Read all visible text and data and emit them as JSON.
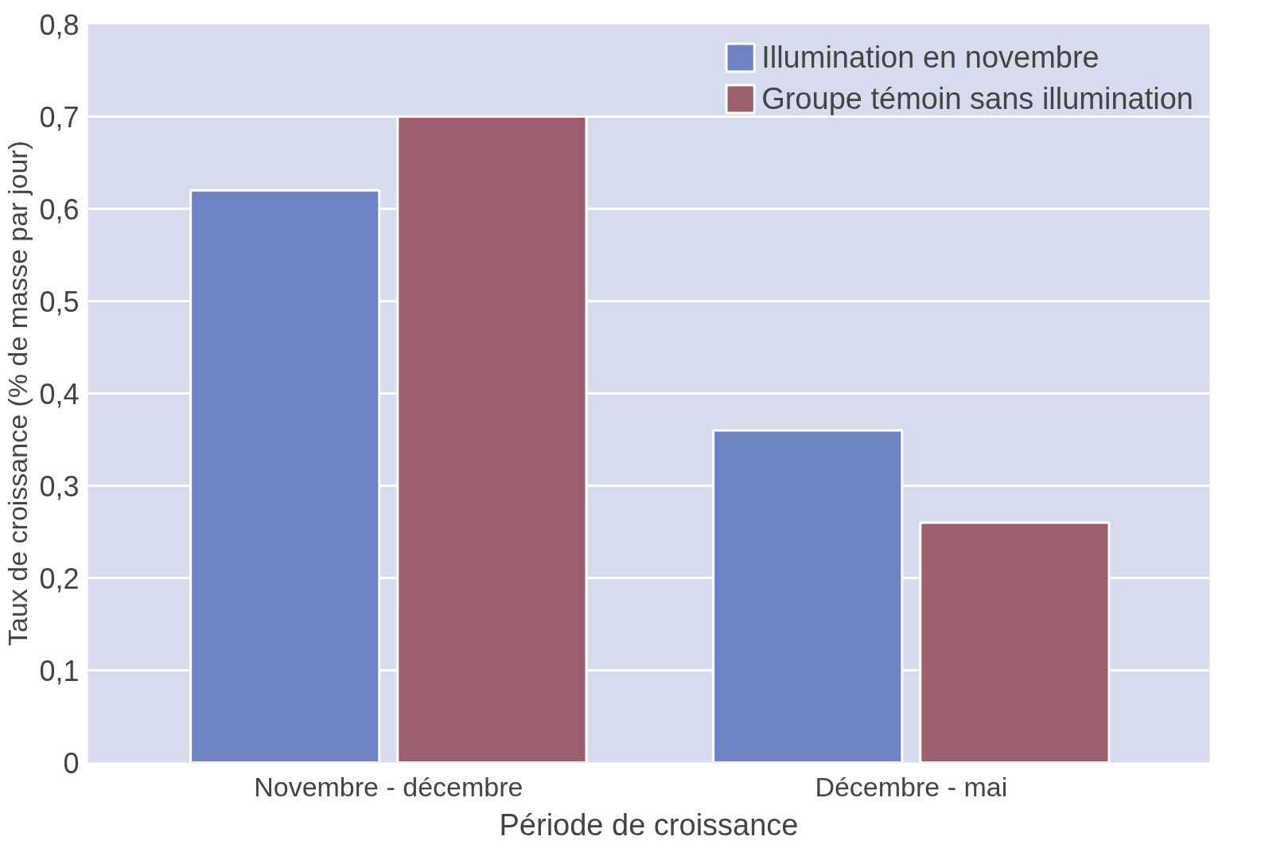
{
  "chart_data": {
    "type": "bar",
    "xlabel": "Période de croissance",
    "ylabel": "Taux de croissance (% de masse par jour)",
    "categories": [
      "Novembre - décembre",
      "Décembre - mai"
    ],
    "series": [
      {
        "name": "Illumination en novembre",
        "color": "#6f82c3",
        "values": [
          0.62,
          0.36
        ]
      },
      {
        "name": "Groupe témoin sans illumination",
        "color": "#9c5f6d",
        "values": [
          0.7,
          0.26
        ]
      }
    ],
    "ylim": [
      0,
      0.8
    ],
    "yticks": [
      0,
      {
        "value": 0.1,
        "label": "0,1"
      },
      {
        "value": 0.2,
        "label": "0,2"
      },
      {
        "value": 0.3,
        "label": "0,3"
      },
      {
        "value": 0.4,
        "label": "0,4"
      },
      {
        "value": 0.5,
        "label": "0,5"
      },
      {
        "value": 0.6,
        "label": "0,6"
      },
      {
        "value": 0.7,
        "label": "0,7"
      },
      {
        "value": 0.8,
        "label": "0,8"
      }
    ],
    "grid": "y",
    "legend": "top right"
  }
}
